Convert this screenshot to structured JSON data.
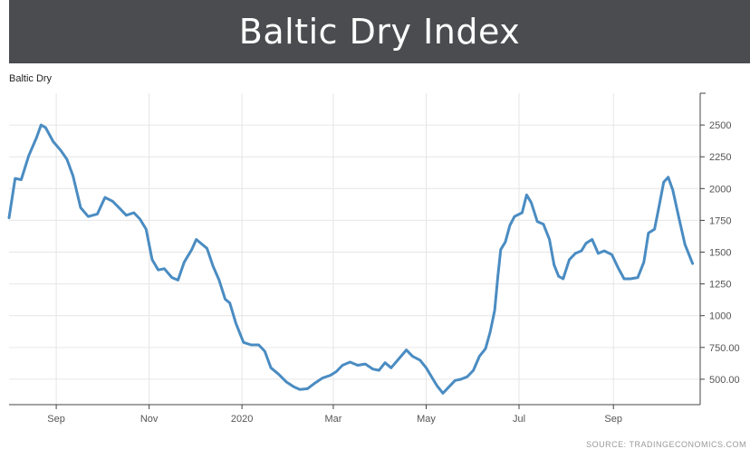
{
  "header": {
    "title": "Baltic Dry Index"
  },
  "chart_data": {
    "type": "line",
    "title": "Baltic Dry",
    "source": "SOURCE: TRADINGECONOMICS.COM",
    "ylim": [
      300,
      2750
    ],
    "yticks": [
      {
        "value": 500,
        "label": "500.00"
      },
      {
        "value": 750,
        "label": "750.00"
      },
      {
        "value": 1000,
        "label": "1000"
      },
      {
        "value": 1250,
        "label": "1250"
      },
      {
        "value": 1500,
        "label": "1500"
      },
      {
        "value": 1750,
        "label": "1750"
      },
      {
        "value": 2000,
        "label": "2000"
      },
      {
        "value": 2250,
        "label": "2250"
      },
      {
        "value": 2500,
        "label": "2500"
      }
    ],
    "xlim": [
      "2019-08-01",
      "2020-10-28"
    ],
    "xticks": [
      {
        "date": "2019-09-01",
        "label": "Sep"
      },
      {
        "date": "2019-11-01",
        "label": "Nov"
      },
      {
        "date": "2020-01-01",
        "label": "2020"
      },
      {
        "date": "2020-03-01",
        "label": "Mar"
      },
      {
        "date": "2020-05-01",
        "label": "May"
      },
      {
        "date": "2020-07-01",
        "label": "Jul"
      },
      {
        "date": "2020-09-01",
        "label": "Sep"
      }
    ],
    "grid": true,
    "colors": {
      "line": "#4a8cc2",
      "grid": "#e6e6e6",
      "axis": "#444444"
    },
    "series": [
      {
        "points": [
          [
            "2019-08-01",
            1770
          ],
          [
            "2019-08-05",
            2080
          ],
          [
            "2019-08-09",
            2070
          ],
          [
            "2019-08-14",
            2260
          ],
          [
            "2019-08-19",
            2400
          ],
          [
            "2019-08-22",
            2500
          ],
          [
            "2019-08-25",
            2480
          ],
          [
            "2019-08-30",
            2370
          ],
          [
            "2019-09-04",
            2300
          ],
          [
            "2019-09-08",
            2230
          ],
          [
            "2019-09-12",
            2100
          ],
          [
            "2019-09-17",
            1850
          ],
          [
            "2019-09-22",
            1780
          ],
          [
            "2019-09-28",
            1800
          ],
          [
            "2019-10-03",
            1930
          ],
          [
            "2019-10-08",
            1900
          ],
          [
            "2019-10-13",
            1840
          ],
          [
            "2019-10-17",
            1790
          ],
          [
            "2019-10-22",
            1810
          ],
          [
            "2019-10-26",
            1760
          ],
          [
            "2019-10-30",
            1680
          ],
          [
            "2019-11-03",
            1440
          ],
          [
            "2019-11-07",
            1360
          ],
          [
            "2019-11-11",
            1370
          ],
          [
            "2019-11-16",
            1300
          ],
          [
            "2019-11-20",
            1280
          ],
          [
            "2019-11-24",
            1420
          ],
          [
            "2019-11-29",
            1520
          ],
          [
            "2019-12-02",
            1600
          ],
          [
            "2019-12-06",
            1560
          ],
          [
            "2019-12-09",
            1530
          ],
          [
            "2019-12-13",
            1390
          ],
          [
            "2019-12-17",
            1280
          ],
          [
            "2019-12-21",
            1130
          ],
          [
            "2019-12-24",
            1100
          ],
          [
            "2019-12-28",
            940
          ],
          [
            "2020-01-02",
            790
          ],
          [
            "2020-01-07",
            770
          ],
          [
            "2020-01-12",
            770
          ],
          [
            "2020-01-16",
            720
          ],
          [
            "2020-01-20",
            590
          ],
          [
            "2020-01-25",
            540
          ],
          [
            "2020-01-30",
            480
          ],
          [
            "2020-02-04",
            440
          ],
          [
            "2020-02-08",
            420
          ],
          [
            "2020-02-13",
            425
          ],
          [
            "2020-02-18",
            470
          ],
          [
            "2020-02-23",
            510
          ],
          [
            "2020-02-28",
            530
          ],
          [
            "2020-03-03",
            560
          ],
          [
            "2020-03-07",
            610
          ],
          [
            "2020-03-12",
            635
          ],
          [
            "2020-03-17",
            610
          ],
          [
            "2020-03-22",
            620
          ],
          [
            "2020-03-27",
            580
          ],
          [
            "2020-03-31",
            570
          ],
          [
            "2020-04-04",
            630
          ],
          [
            "2020-04-08",
            590
          ],
          [
            "2020-04-13",
            660
          ],
          [
            "2020-04-18",
            730
          ],
          [
            "2020-04-22",
            680
          ],
          [
            "2020-04-27",
            650
          ],
          [
            "2020-05-01",
            590
          ],
          [
            "2020-05-05",
            510
          ],
          [
            "2020-05-08",
            450
          ],
          [
            "2020-05-12",
            390
          ],
          [
            "2020-05-16",
            440
          ],
          [
            "2020-05-20",
            490
          ],
          [
            "2020-05-24",
            500
          ],
          [
            "2020-05-28",
            520
          ],
          [
            "2020-06-01",
            570
          ],
          [
            "2020-06-05",
            680
          ],
          [
            "2020-06-09",
            740
          ],
          [
            "2020-06-12",
            870
          ],
          [
            "2020-06-15",
            1040
          ],
          [
            "2020-06-17",
            1300
          ],
          [
            "2020-06-19",
            1520
          ],
          [
            "2020-06-22",
            1580
          ],
          [
            "2020-06-25",
            1710
          ],
          [
            "2020-06-28",
            1780
          ],
          [
            "2020-07-03",
            1810
          ],
          [
            "2020-07-06",
            1950
          ],
          [
            "2020-07-09",
            1890
          ],
          [
            "2020-07-13",
            1740
          ],
          [
            "2020-07-17",
            1720
          ],
          [
            "2020-07-21",
            1600
          ],
          [
            "2020-07-24",
            1400
          ],
          [
            "2020-07-27",
            1310
          ],
          [
            "2020-07-30",
            1290
          ],
          [
            "2020-08-03",
            1440
          ],
          [
            "2020-08-07",
            1490
          ],
          [
            "2020-08-11",
            1510
          ],
          [
            "2020-08-14",
            1570
          ],
          [
            "2020-08-18",
            1600
          ],
          [
            "2020-08-22",
            1490
          ],
          [
            "2020-08-26",
            1510
          ],
          [
            "2020-08-31",
            1480
          ],
          [
            "2020-09-04",
            1380
          ],
          [
            "2020-09-08",
            1290
          ],
          [
            "2020-09-12",
            1290
          ],
          [
            "2020-09-17",
            1300
          ],
          [
            "2020-09-21",
            1420
          ],
          [
            "2020-09-24",
            1650
          ],
          [
            "2020-09-28",
            1680
          ],
          [
            "2020-10-01",
            1860
          ],
          [
            "2020-10-04",
            2050
          ],
          [
            "2020-10-07",
            2090
          ],
          [
            "2020-10-10",
            1990
          ],
          [
            "2020-10-14",
            1770
          ],
          [
            "2020-10-18",
            1560
          ],
          [
            "2020-10-23",
            1410
          ]
        ]
      }
    ]
  }
}
